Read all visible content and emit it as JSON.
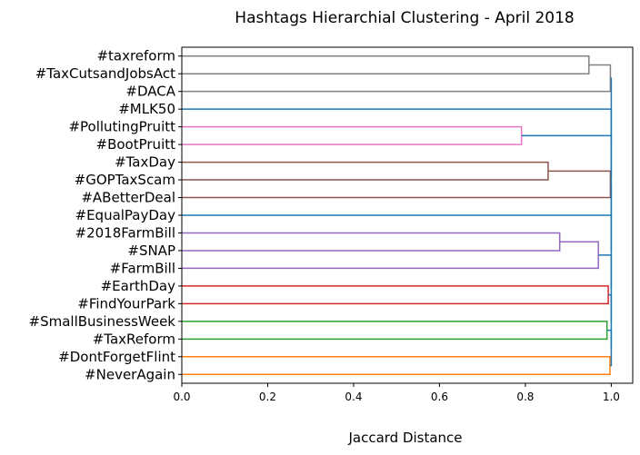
{
  "chart_data": {
    "type": "dendrogram",
    "orientation": "left",
    "title": "Hashtags Hierarchial Clustering - April 2018",
    "xlabel": "Jaccard Distance",
    "xlim": [
      0,
      1.05
    ],
    "xticks": [
      0.0,
      0.2,
      0.4,
      0.6,
      0.8,
      1.0
    ],
    "leaves": [
      "#taxreform",
      "#TaxCutsandJobsAct",
      "#DACA",
      "#MLK50",
      "#PollutingPruitt",
      "#BootPruitt",
      "#TaxDay",
      "#GOPTaxScam",
      "#ABetterDeal",
      "#EqualPayDay",
      "#2018FarmBill",
      "#SNAP",
      "#FarmBill",
      "#EarthDay",
      "#FindYourPark",
      "#SmallBusinessWeek",
      "#TaxReform",
      "#DontForgetFlint",
      "#NeverAgain"
    ],
    "colors": {
      "gray": "#808080",
      "blue": "#1f77b4",
      "pink": "#e377c2",
      "brown": "#8c564b",
      "purple": "#9467bd",
      "red": "#d62728",
      "green": "#2ca02c",
      "orange": "#ff7f0e"
    },
    "merges": [
      {
        "id": "gA",
        "left": 0,
        "right": 1,
        "height": 0.948,
        "color": "gray"
      },
      {
        "id": "gB",
        "left": "gA",
        "right": 2,
        "height": 0.998,
        "color": "gray"
      },
      {
        "id": "p",
        "left": 4,
        "right": 5,
        "height": 0.791,
        "color": "pink"
      },
      {
        "id": "brA",
        "left": 6,
        "right": 7,
        "height": 0.853,
        "color": "brown"
      },
      {
        "id": "brB",
        "left": "brA",
        "right": 8,
        "height": 0.998,
        "color": "brown"
      },
      {
        "id": "puA",
        "left": 10,
        "right": 11,
        "height": 0.88,
        "color": "purple"
      },
      {
        "id": "puB",
        "left": "puA",
        "right": 12,
        "height": 0.97,
        "color": "purple"
      },
      {
        "id": "r",
        "left": 13,
        "right": 14,
        "height": 0.993,
        "color": "red"
      },
      {
        "id": "g",
        "left": 15,
        "right": 16,
        "height": 0.99,
        "color": "green"
      },
      {
        "id": "o",
        "left": 17,
        "right": 18,
        "height": 0.997,
        "color": "orange"
      },
      {
        "id": "b1",
        "left": "g",
        "right": "o",
        "height": 1.0,
        "color": "blue"
      },
      {
        "id": "b2",
        "left": "r",
        "right": "b1",
        "height": 1.0,
        "color": "blue"
      },
      {
        "id": "b3",
        "left": "puB",
        "right": "b2",
        "height": 1.0,
        "color": "blue"
      },
      {
        "id": "b4",
        "left": 9,
        "right": "b3",
        "height": 1.0,
        "color": "blue"
      },
      {
        "id": "b5",
        "left": "brB",
        "right": "b4",
        "height": 1.0,
        "color": "blue"
      },
      {
        "id": "b6",
        "left": "p",
        "right": "b5",
        "height": 1.0,
        "color": "blue"
      },
      {
        "id": "b7",
        "left": 3,
        "right": "b6",
        "height": 1.0,
        "color": "blue"
      },
      {
        "id": "b8",
        "left": "gB",
        "right": "b7",
        "height": 1.0,
        "color": "blue"
      }
    ]
  }
}
